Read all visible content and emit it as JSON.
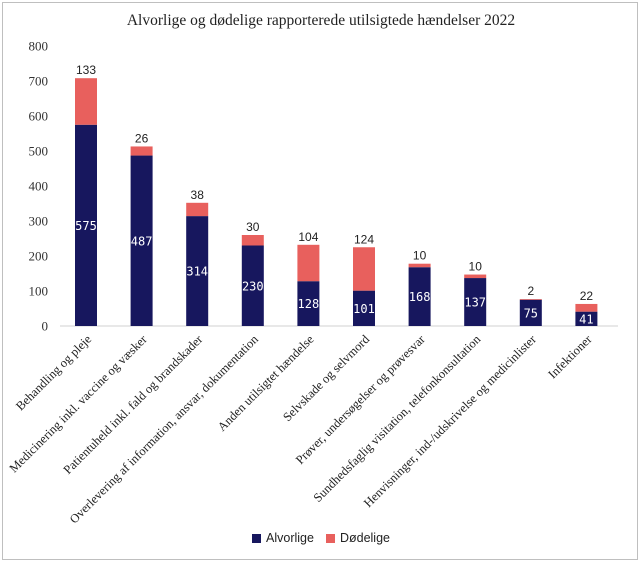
{
  "chart_data": {
    "type": "bar",
    "stacked": true,
    "title": "Alvorlige og dødelige rapporterede utilsigtede hændelser 2022",
    "xlabel": "",
    "ylabel": "",
    "ylim": [
      0,
      800
    ],
    "yticks": [
      0,
      100,
      200,
      300,
      400,
      500,
      600,
      700,
      800
    ],
    "grid": false,
    "legend_position": "bottom",
    "categories": [
      "Behandling og pleje",
      "Medicinering inkl. vaccine og væsker",
      "Patientuheld inkl. fald og brandskader",
      "Overlevering af information, ansvar, dokumentation",
      "Anden utilsigtet hændelse",
      "Selvskade og selvmord",
      "Prøver, undersøgelser og prøvesvar",
      "Sundhedsfaglig visitation, telefonkonsultation",
      "Henvisninger, ind-/udskrivelse og medicinlister",
      "Infektioner"
    ],
    "series": [
      {
        "name": "Alvorlige",
        "color": "#17175e",
        "values": [
          575,
          487,
          314,
          230,
          128,
          101,
          168,
          137,
          75,
          41
        ]
      },
      {
        "name": "Dødelige",
        "color": "#e8605d",
        "values": [
          133,
          26,
          38,
          30,
          104,
          124,
          10,
          10,
          2,
          22
        ]
      }
    ]
  }
}
